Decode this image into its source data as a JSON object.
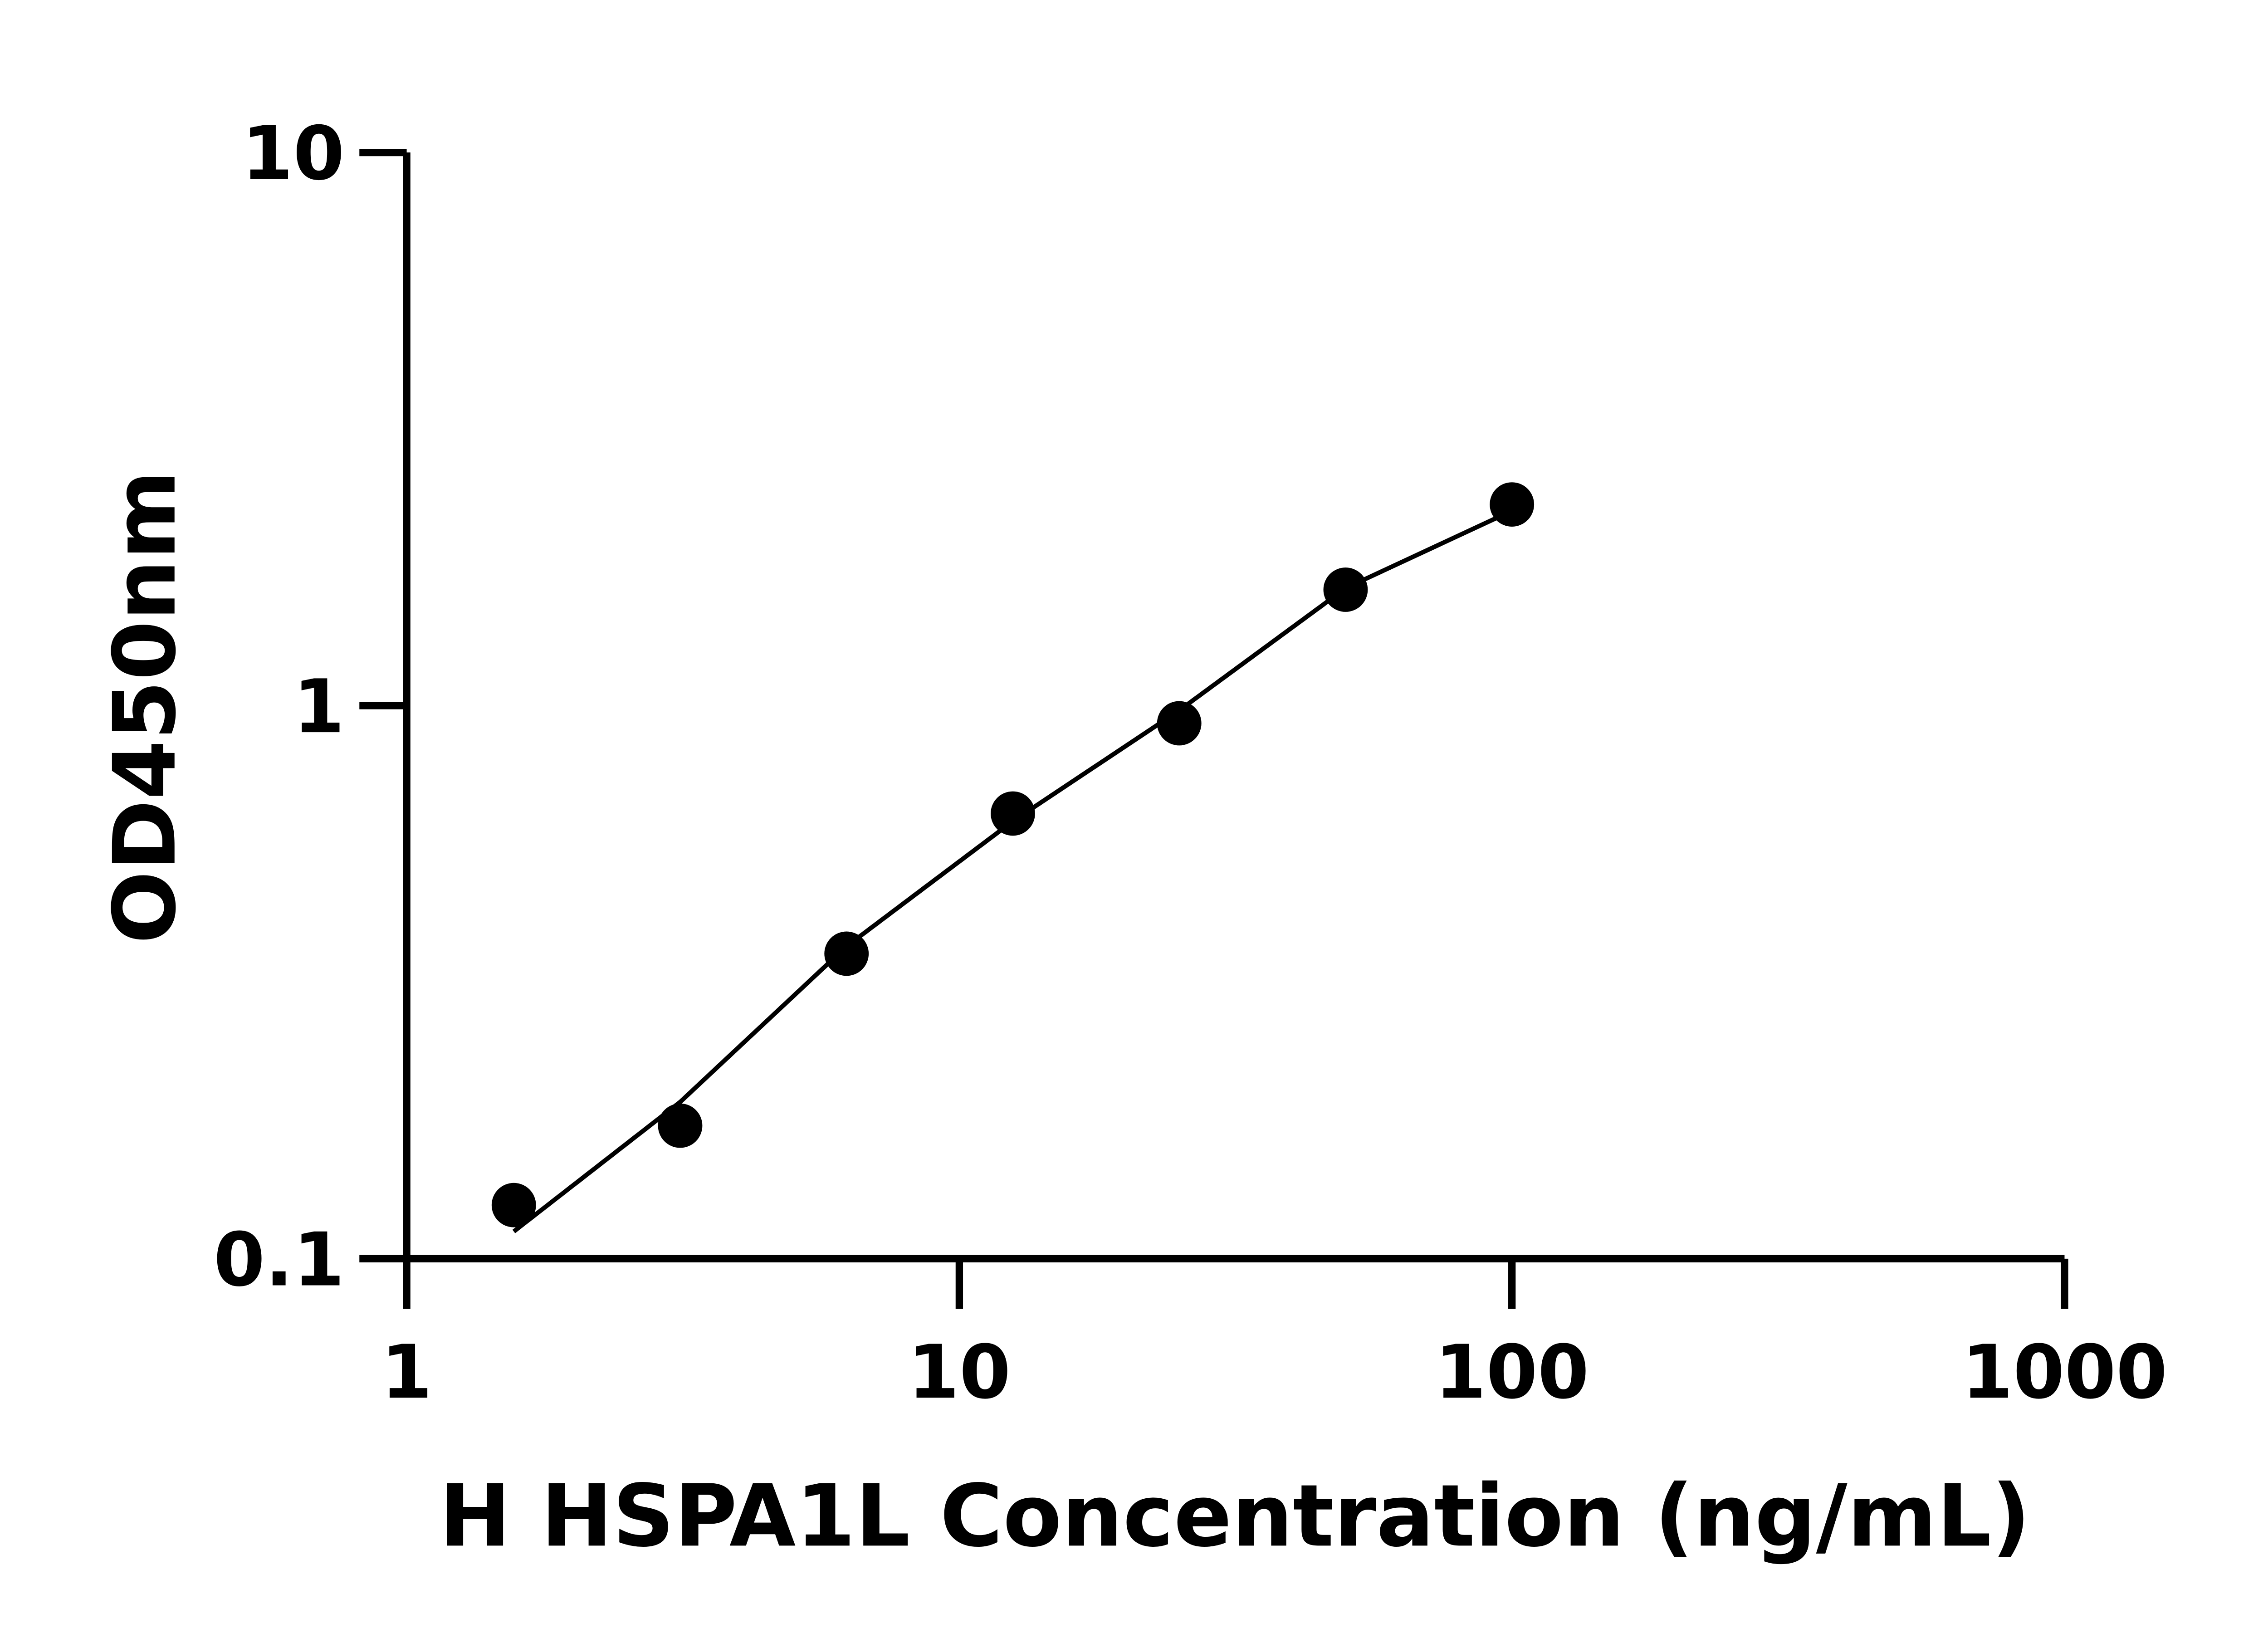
{
  "chart_data": {
    "type": "scatter",
    "x_label": "H HSPA1L Concentration (ng/mL)",
    "y_label": "OD450nm",
    "x_scale": "log",
    "y_scale": "log",
    "xlim": [
      1,
      1000
    ],
    "ylim": [
      0.1,
      10
    ],
    "xticks": [
      1,
      10,
      100,
      1000
    ],
    "yticks": [
      0.1,
      1,
      10
    ],
    "x": [
      1.5625,
      3.125,
      6.25,
      12.5,
      25,
      50,
      100
    ],
    "values": [
      0.125,
      0.174,
      0.356,
      0.638,
      0.929,
      1.62,
      2.31
    ],
    "color": "#000000",
    "curve": {
      "x": [
        1.5625,
        3.125,
        6.25,
        12.5,
        25,
        50,
        100
      ],
      "values": [
        0.112,
        0.192,
        0.367,
        0.618,
        0.98,
        1.63,
        2.25
      ]
    }
  }
}
